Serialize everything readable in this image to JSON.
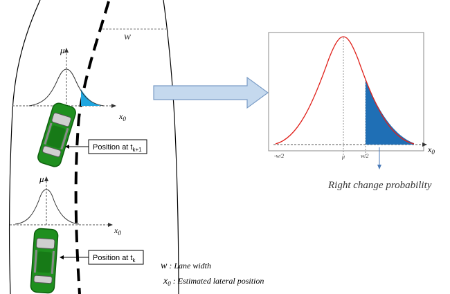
{
  "labels": {
    "w_top": "w",
    "mu_upper": "μ",
    "mu_lower": "μ",
    "x0_upper": "x",
    "x0_upper_sub": "0",
    "x0_lower": "x",
    "x0_lower_sub": "0",
    "position_k1_prefix": "Position at t",
    "position_k1_sub": "k+1",
    "position_k_prefix": "Position at t",
    "position_k_sub": "k",
    "right_change_probability": "Right change probability",
    "tick_minus_half_w": "-w/2",
    "tick_mu": "μ",
    "tick_plus_half_w": "w/2",
    "x0_right": "x",
    "x0_right_sub": "0"
  },
  "legend": {
    "w_symbol": "w",
    "w_text": " : Lane width",
    "x0_symbol": "x",
    "x0_sub": "0",
    "x0_text": " : Estimated lateral position"
  },
  "colors": {
    "car_body": "#1f8f1f",
    "car_dark": "#0d5e0d",
    "tail_fill_small": "#1fa6e0",
    "tail_fill_large": "#1f6fb5",
    "curve_red": "#e0211b",
    "arrow_fill": "#c5d9ee",
    "arrow_stroke": "#7a9cc6",
    "pointer_blue": "#4a7ab8"
  }
}
